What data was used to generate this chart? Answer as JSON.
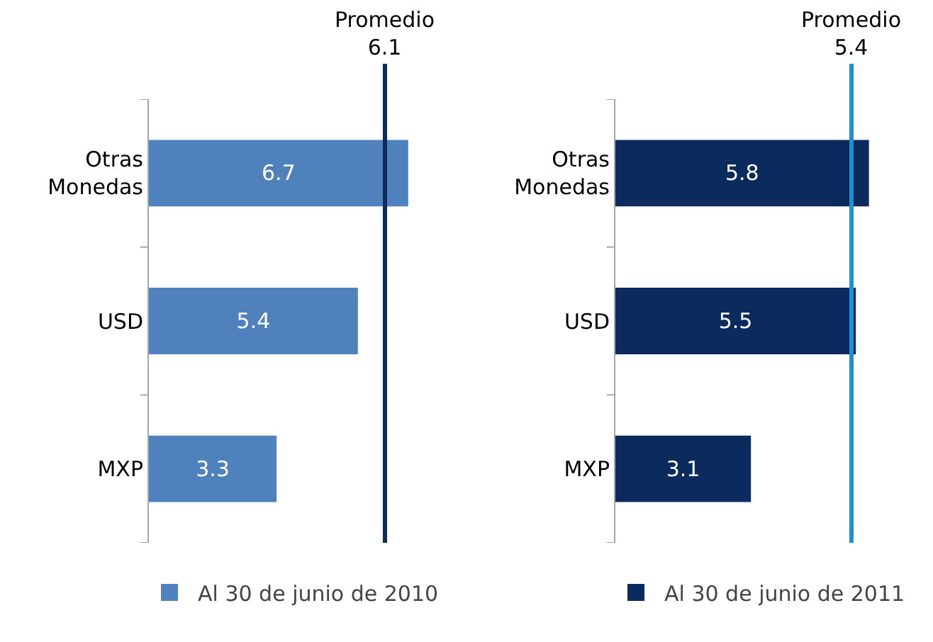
{
  "chart_data": [
    {
      "type": "bar",
      "orientation": "horizontal",
      "categories": [
        "Otras Monedas",
        "USD",
        "MXP"
      ],
      "tick_labels": "y",
      "data_labels": true,
      "legend": "bottom",
      "grid": false,
      "series": [
        {
          "name": "Al 30 de junio de 2010",
          "color": "#4f81bd",
          "values": [
            6.7,
            5.4,
            3.3
          ]
        }
      ],
      "ref_lines": [
        {
          "axis": "x",
          "value": 6.1,
          "label": "Promedio\n6.1",
          "color": "#0b2a5e",
          "line_style": "solid"
        }
      ]
    },
    {
      "type": "bar",
      "orientation": "horizontal",
      "categories": [
        "Otras Monedas",
        "USD",
        "MXP"
      ],
      "tick_labels": "y",
      "data_labels": true,
      "legend": "bottom",
      "grid": false,
      "series": [
        {
          "name": "Al 30 de junio de 2011",
          "color": "#0b2a5e",
          "values": [
            5.8,
            5.5,
            3.1
          ]
        }
      ],
      "ref_lines": [
        {
          "axis": "x",
          "value": 5.4,
          "label": "Promedio\n5.4",
          "color": "#1f8fd6",
          "line_style": "solid"
        }
      ]
    }
  ]
}
